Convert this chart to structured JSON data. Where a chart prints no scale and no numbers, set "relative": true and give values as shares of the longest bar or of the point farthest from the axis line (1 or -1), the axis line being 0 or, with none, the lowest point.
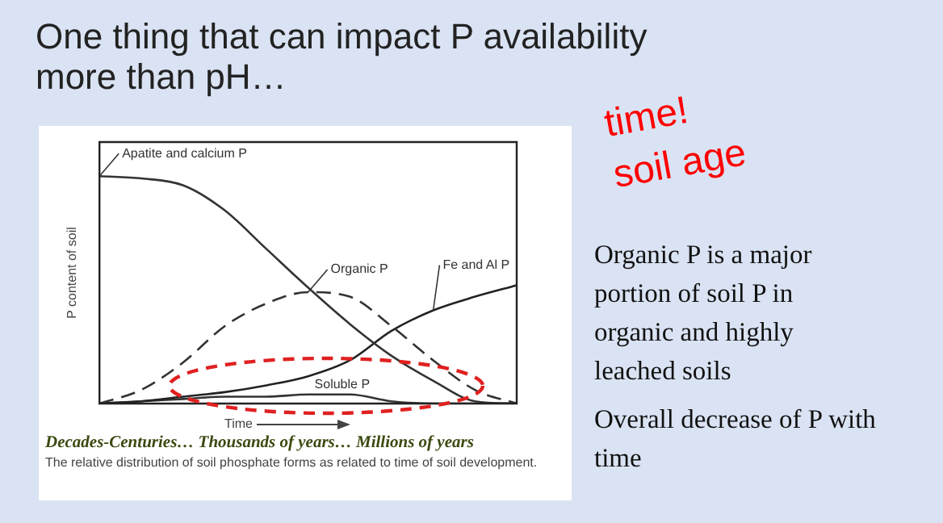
{
  "chart_data": {
    "type": "line",
    "relative": true,
    "title": "One thing that can impact P availability more than pH…",
    "ylabel": "P content of soil",
    "xlabel": "Time",
    "categories": [
      null,
      null,
      null,
      null,
      null,
      null,
      null,
      null,
      null,
      null,
      null
    ],
    "series": [
      {
        "name": "Apatite and calcium P",
        "color": "#333333",
        "line_style": "solid",
        "values": [
          1,
          0.99,
          0.96,
          0.85,
          0.68,
          0.51,
          0.35,
          0.21,
          0.1,
          0.01,
          0
        ]
      },
      {
        "name": "Organic P",
        "color": "#333333",
        "line_style": "dashed",
        "values": [
          0,
          0.06,
          0.18,
          0.34,
          0.44,
          0.49,
          0.47,
          0.34,
          0.19,
          0.06,
          0
        ]
      },
      {
        "name": "Fe and Al P",
        "color": "#222222",
        "line_style": "solid",
        "values": [
          0,
          0.01,
          0.03,
          0.05,
          0.08,
          0.12,
          0.19,
          0.32,
          0.41,
          0.47,
          0.52
        ]
      },
      {
        "name": "Soluble P",
        "color": "#333333",
        "line_style": "solid",
        "values": [
          0,
          0.01,
          0.02,
          0.03,
          0.03,
          0.04,
          0.04,
          0.01,
          0,
          0,
          0
        ]
      }
    ],
    "marker": "none",
    "grid": false,
    "legend": false,
    "annotations": [
      "Decades-Centuries… Thousands of years… Millions of years",
      "The relative distribution of soil phosphate forms as related to time of soil development.",
      "time!",
      "soil age",
      "Organic P is a major portion of soil P in organic and highly leached soils",
      "Overall decrease of P with time"
    ]
  }
}
